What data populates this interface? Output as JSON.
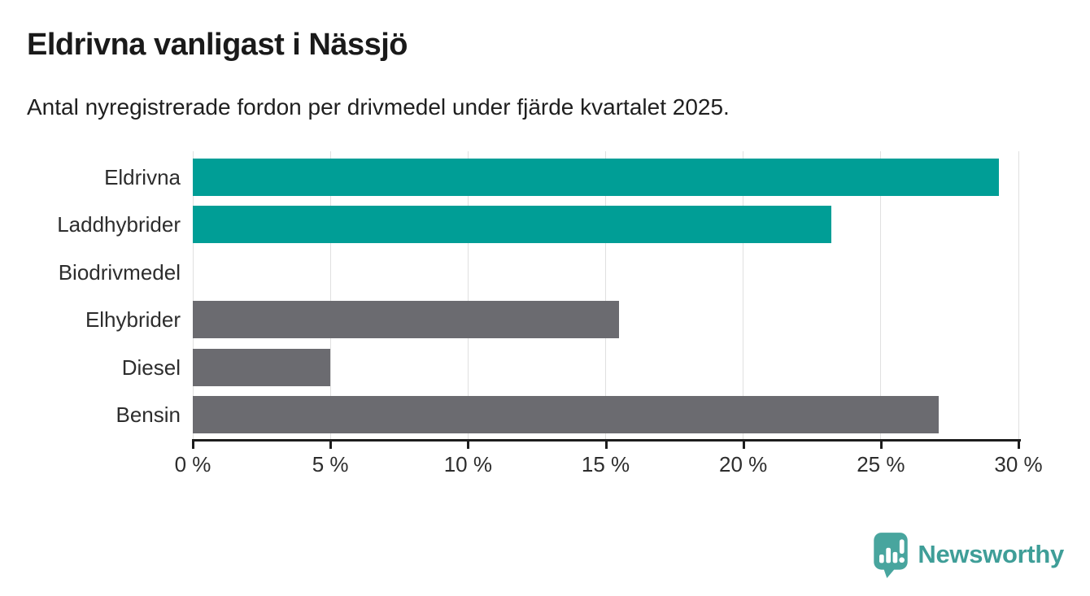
{
  "title": "Eldrivna vanligast i Nässjö",
  "subtitle": "Antal nyregistrerade fordon per drivmedel under fjärde kvartalet 2025.",
  "chart_data": {
    "type": "bar",
    "orientation": "horizontal",
    "title": "Eldrivna vanligast i Nässjö",
    "subtitle": "Antal nyregistrerade fordon per drivmedel under fjärde kvartalet 2025.",
    "categories": [
      "Eldrivna",
      "Laddhybrider",
      "Biodrivmedel",
      "Elhybrider",
      "Diesel",
      "Bensin"
    ],
    "values": [
      29.3,
      23.2,
      0,
      15.5,
      5.0,
      27.1
    ],
    "bar_colors": [
      "#009E96",
      "#009E96",
      "#6B6B70",
      "#6B6B70",
      "#6B6B70",
      "#6B6B70"
    ],
    "xlabel": "",
    "ylabel": "",
    "xlim": [
      0,
      30
    ],
    "x_ticks": [
      0,
      5,
      10,
      15,
      20,
      25,
      30
    ],
    "x_tick_labels": [
      "0 %",
      "5 %",
      "10 %",
      "15 %",
      "20 %",
      "25 %",
      "30 %"
    ],
    "unit": "%",
    "grid": "vertical-on",
    "legend": "none"
  },
  "colors": {
    "accent_teal": "#009E96",
    "neutral_gray": "#6B6B70",
    "gridline": "#e0e0e0",
    "axis": "#1d1d1d",
    "text": "#2d2d2d",
    "logo_teal": "#48A59E",
    "logo_text_teal": "#3F9E98"
  },
  "branding": {
    "logo_text": "Newsworthy",
    "logo_icon": "newsworthy-speech-bubble-bar-chart-icon"
  }
}
